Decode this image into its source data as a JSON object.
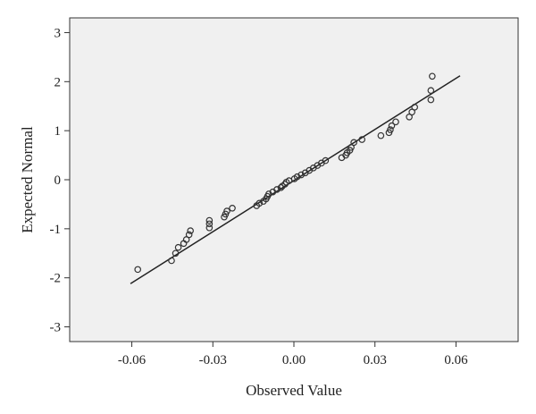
{
  "chart_data": {
    "type": "scatter",
    "title": "",
    "xlabel": "Observed Value",
    "ylabel": "Expected Normal",
    "xlim": [
      -0.083,
      0.083
    ],
    "ylim": [
      -3.3,
      3.3
    ],
    "x_ticks": [
      -0.06,
      -0.03,
      0.0,
      0.03,
      0.06
    ],
    "x_tick_labels": [
      "-0.06",
      "-0.03",
      "0.00",
      "0.03",
      "0.06"
    ],
    "y_ticks": [
      -3,
      -2,
      -1,
      0,
      1,
      2,
      3
    ],
    "y_tick_labels": [
      "-3",
      "-2",
      "-1",
      "0",
      "1",
      "2",
      "3"
    ],
    "grid": false,
    "plot_background": "#f0f0f0",
    "marker_color": "#333333",
    "line_color": "#222222",
    "reference_line": {
      "x": [
        -0.0605,
        0.0615
      ],
      "y": [
        -2.12,
        2.12
      ]
    },
    "series": [
      {
        "x": [
          -0.0578,
          -0.0453,
          -0.0438,
          -0.0428,
          -0.0408,
          -0.0398,
          -0.0388,
          -0.0383,
          -0.0313,
          -0.0313,
          -0.0313,
          -0.0258,
          -0.0253,
          -0.0248,
          -0.0228,
          -0.0138,
          -0.0128,
          -0.0113,
          -0.0103,
          -0.0098,
          -0.0093,
          -0.0078,
          -0.0063,
          -0.0048,
          -0.0043,
          -0.0033,
          -0.0028,
          -0.0018,
          0.0002,
          0.0012,
          0.0027,
          0.0042,
          0.0057,
          0.0072,
          0.0087,
          0.0102,
          0.0117,
          0.0177,
          0.0192,
          0.0197,
          0.0207,
          0.0212,
          0.0222,
          0.0252,
          0.0322,
          0.0352,
          0.0357,
          0.0362,
          0.0377,
          0.0427,
          0.0437,
          0.0447,
          0.0507,
          0.0507,
          0.0512
        ],
        "y": [
          -1.83,
          -1.65,
          -1.5,
          -1.38,
          -1.3,
          -1.22,
          -1.12,
          -1.04,
          -0.98,
          -0.9,
          -0.83,
          -0.76,
          -0.7,
          -0.64,
          -0.58,
          -0.53,
          -0.48,
          -0.44,
          -0.39,
          -0.34,
          -0.29,
          -0.25,
          -0.2,
          -0.16,
          -0.13,
          -0.09,
          -0.05,
          -0.02,
          0.02,
          0.06,
          0.1,
          0.14,
          0.19,
          0.24,
          0.29,
          0.34,
          0.39,
          0.45,
          0.5,
          0.55,
          0.6,
          0.66,
          0.76,
          0.82,
          0.9,
          0.96,
          1.02,
          1.1,
          1.18,
          1.28,
          1.38,
          1.48,
          1.63,
          1.82,
          2.11
        ]
      }
    ]
  }
}
